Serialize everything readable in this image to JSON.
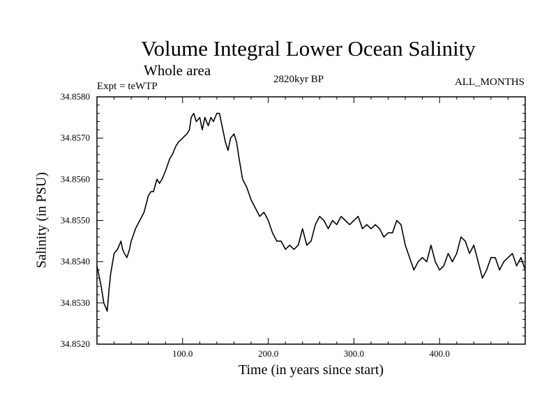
{
  "chart_data": {
    "type": "line",
    "title": "Volume Integral Lower Ocean Salinity",
    "subtitle": "Whole area",
    "left_label": "Expt = teWTP",
    "center_label": "2820kyr BP",
    "right_label": "ALL_MONTHS",
    "xlabel": "Time (in years since start)",
    "ylabel": "Salinity (in PSU)",
    "xlim": [
      0,
      500
    ],
    "ylim": [
      34.852,
      34.858
    ],
    "x_ticks": [
      100,
      200,
      300,
      400
    ],
    "x_tick_labels": [
      "100.0",
      "200.0",
      "300.0",
      "400.0"
    ],
    "y_ticks": [
      34.852,
      34.853,
      34.854,
      34.855,
      34.856,
      34.857,
      34.858
    ],
    "y_tick_labels": [
      "34.8520",
      "34.8530",
      "34.8540",
      "34.8550",
      "34.8560",
      "34.8570",
      "34.8580"
    ],
    "series": [
      {
        "name": "salinity",
        "x": [
          0,
          5,
          8,
          10,
          12,
          14,
          16,
          20,
          24,
          28,
          30,
          32,
          35,
          38,
          40,
          45,
          50,
          55,
          60,
          63,
          66,
          70,
          73,
          76,
          80,
          85,
          88,
          92,
          95,
          100,
          105,
          108,
          110,
          113,
          116,
          120,
          123,
          126,
          130,
          133,
          136,
          140,
          143,
          146,
          150,
          153,
          156,
          160,
          163,
          166,
          170,
          175,
          180,
          185,
          190,
          195,
          200,
          205,
          210,
          215,
          220,
          225,
          230,
          235,
          240,
          245,
          250,
          255,
          260,
          265,
          270,
          275,
          280,
          285,
          290,
          295,
          300,
          305,
          310,
          315,
          320,
          325,
          330,
          335,
          340,
          345,
          350,
          355,
          360,
          365,
          370,
          375,
          380,
          385,
          390,
          395,
          400,
          405,
          410,
          415,
          420,
          425,
          430,
          435,
          440,
          445,
          450,
          455,
          460,
          465,
          470,
          475,
          480,
          485,
          490,
          495,
          500
        ],
        "values": [
          34.8539,
          34.8534,
          34.853,
          34.8529,
          34.8528,
          34.8533,
          34.8537,
          34.8542,
          34.8543,
          34.8545,
          34.8543,
          34.8542,
          34.8541,
          34.8543,
          34.8545,
          34.8548,
          34.855,
          34.8552,
          34.8556,
          34.8557,
          34.8557,
          34.856,
          34.8559,
          34.856,
          34.8562,
          34.8565,
          34.8566,
          34.8568,
          34.8569,
          34.857,
          34.8571,
          34.8572,
          34.8575,
          34.8576,
          34.8574,
          34.8575,
          34.8572,
          34.8575,
          34.8573,
          34.8575,
          34.8574,
          34.8576,
          34.8576,
          34.8573,
          34.8569,
          34.8567,
          34.857,
          34.8571,
          34.8569,
          34.8565,
          34.856,
          34.8558,
          34.8555,
          34.8553,
          34.8551,
          34.8552,
          34.855,
          34.8547,
          34.8545,
          34.8545,
          34.8543,
          34.8544,
          34.8543,
          34.8544,
          34.8548,
          34.8544,
          34.8545,
          34.8549,
          34.8551,
          34.855,
          34.8548,
          34.855,
          34.8549,
          34.8551,
          34.855,
          34.8549,
          34.855,
          34.8551,
          34.8548,
          34.8549,
          34.8548,
          34.8549,
          34.8548,
          34.8546,
          34.8547,
          34.8547,
          34.855,
          34.8549,
          34.8544,
          34.8541,
          34.8538,
          34.854,
          34.8541,
          34.854,
          34.8544,
          34.854,
          34.8538,
          34.8539,
          34.8542,
          34.854,
          34.8542,
          34.8546,
          34.8545,
          34.8542,
          34.8544,
          34.854,
          34.8536,
          34.8538,
          34.8541,
          34.8541,
          34.8538,
          34.854,
          34.8541,
          34.8542,
          34.8539,
          34.8541,
          34.8538
        ]
      }
    ]
  }
}
